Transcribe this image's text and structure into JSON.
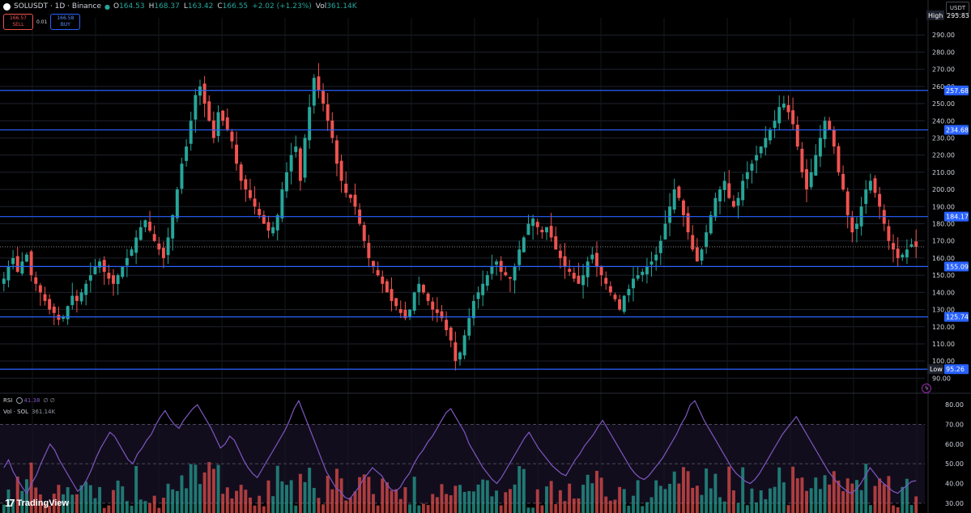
{
  "header": {
    "symbol": "SOLUSDT · 1D · Binance",
    "ohlc": {
      "o_label": "O",
      "o": "164.53",
      "h_label": "H",
      "h": "168.37",
      "l_label": "L",
      "l": "163.42",
      "c_label": "C",
      "c": "166.55",
      "change": "+2.02 (+1.23%)",
      "vol_label": "Vol",
      "vol": "361.14K"
    }
  },
  "trade": {
    "sell_price": "166.57",
    "sell_label": "SELL",
    "spread": "0.01",
    "buy_price": "166.58",
    "buy_label": "BUY"
  },
  "currency": "USDT",
  "indicators": {
    "rsi": {
      "name": "RSI",
      "values": "41.38",
      "extra": "∅ ∅"
    },
    "vol": {
      "name": "Vol · SOL",
      "value": "361.14K"
    }
  },
  "branding": {
    "name": "TradingView",
    "mark": "17"
  },
  "colors": {
    "up": "#26a69a",
    "down": "#ef5350",
    "level": "#2962ff",
    "rsi": "#7e57c2",
    "grid": "#1e222d",
    "axis_text": "#d1d4dc"
  },
  "chart_data": [
    {
      "type": "candlestick",
      "ylim": [
        85,
        300
      ],
      "y_ticks": [
        90,
        100,
        110,
        120,
        130,
        140,
        150,
        160,
        170,
        180,
        190,
        200,
        210,
        220,
        230,
        240,
        250,
        260,
        270,
        280,
        290
      ],
      "y_tick_labels": [
        "90.00",
        "100.00",
        "110.00",
        "120.00",
        "130.00",
        "140.00",
        "150.00",
        "160.00",
        "170.00",
        "180.00",
        "190.00",
        "200.00",
        "210.00",
        "220.00",
        "230.00",
        "240.00",
        "250.00",
        "260.00",
        "270.00",
        "280.00",
        "290.00"
      ],
      "horizontal_levels": [
        {
          "value": 257.68,
          "label": "257.68"
        },
        {
          "value": 234.68,
          "label": "234.68"
        },
        {
          "value": 184.17,
          "label": "184.17"
        },
        {
          "value": 155.09,
          "label": "155.09"
        },
        {
          "value": 125.74,
          "label": "125.74"
        },
        {
          "value": 95.26,
          "label": "95.26",
          "tag": "Low"
        }
      ],
      "high_marker": {
        "value": 295.83,
        "label": "295.83",
        "tag": "High"
      },
      "last_price": 166.55,
      "close_series": [
        148,
        155,
        160,
        152,
        158,
        162,
        150,
        145,
        140,
        135,
        130,
        128,
        124,
        126,
        132,
        138,
        135,
        140,
        145,
        150,
        155,
        158,
        152,
        148,
        145,
        150,
        155,
        160,
        165,
        172,
        178,
        182,
        176,
        170,
        165,
        160,
        172,
        185,
        200,
        215,
        225,
        240,
        255,
        260,
        250,
        240,
        230,
        245,
        240,
        235,
        228,
        215,
        205,
        200,
        195,
        190,
        185,
        180,
        176,
        178,
        185,
        200,
        210,
        220,
        225,
        205,
        230,
        248,
        265,
        258,
        250,
        240,
        230,
        215,
        205,
        198,
        195,
        190,
        180,
        170,
        160,
        155,
        150,
        145,
        140,
        135,
        132,
        128,
        125,
        130,
        140,
        145,
        140,
        135,
        130,
        128,
        125,
        118,
        112,
        100,
        105,
        115,
        125,
        135,
        140,
        145,
        150,
        155,
        158,
        152,
        150,
        148,
        155,
        165,
        172,
        180,
        183,
        178,
        175,
        178,
        172,
        165,
        160,
        155,
        152,
        148,
        145,
        150,
        158,
        162,
        155,
        150,
        145,
        140,
        136,
        130,
        138,
        142,
        148,
        150,
        152,
        155,
        158,
        162,
        170,
        180,
        190,
        200,
        195,
        185,
        175,
        165,
        158,
        165,
        175,
        185,
        195,
        200,
        205,
        195,
        190,
        195,
        205,
        210,
        215,
        220,
        225,
        230,
        235,
        240,
        248,
        250,
        245,
        238,
        225,
        210,
        200,
        210,
        220,
        230,
        240,
        235,
        225,
        210,
        200,
        185,
        175,
        180,
        190,
        200,
        205,
        198,
        190,
        180,
        170,
        165,
        160,
        162,
        165,
        168,
        166.55
      ]
    },
    {
      "type": "line",
      "name": "RSI",
      "ylim": [
        25,
        85
      ],
      "y_ticks": [
        30,
        40,
        50,
        60,
        70,
        80
      ],
      "y_tick_labels": [
        "30.00",
        "40.00",
        "50.00",
        "60.00",
        "70.00",
        "80.00"
      ],
      "bands": [
        30,
        50,
        70
      ],
      "values": [
        48,
        52,
        46,
        42,
        38,
        35,
        40,
        44,
        50,
        55,
        60,
        57,
        52,
        48,
        44,
        40,
        36,
        38,
        42,
        47,
        53,
        58,
        62,
        66,
        64,
        60,
        56,
        52,
        50,
        55,
        58,
        62,
        65,
        70,
        74,
        77,
        73,
        70,
        68,
        72,
        75,
        78,
        80,
        76,
        72,
        68,
        63,
        58,
        60,
        64,
        62,
        57,
        52,
        48,
        45,
        43,
        47,
        51,
        55,
        59,
        63,
        67,
        72,
        78,
        82,
        76,
        70,
        64,
        58,
        52,
        46,
        42,
        38,
        36,
        33,
        32,
        35,
        38,
        42,
        45,
        48,
        46,
        44,
        40,
        37,
        36,
        38,
        42,
        45,
        50,
        54,
        57,
        61,
        64,
        68,
        72,
        76,
        78,
        74,
        70,
        66,
        60,
        56,
        52,
        48,
        45,
        42,
        40,
        43,
        47,
        51,
        55,
        59,
        63,
        66,
        62,
        58,
        55,
        52,
        49,
        47,
        45,
        44,
        48,
        52,
        55,
        59,
        62,
        65,
        69,
        72,
        68,
        64,
        60,
        56,
        52,
        48,
        45,
        43,
        42,
        44,
        47,
        50,
        53,
        57,
        61,
        65,
        70,
        74,
        80,
        82,
        77,
        72,
        68,
        64,
        60,
        56,
        52,
        48,
        45,
        43,
        41,
        40,
        42,
        45,
        49,
        53,
        57,
        61,
        65,
        68,
        71,
        74,
        70,
        66,
        62,
        58,
        54,
        50,
        46,
        43,
        40,
        38,
        36,
        35,
        37,
        40,
        44,
        48,
        45,
        42,
        40,
        38,
        36,
        35,
        37,
        39,
        41,
        41.38
      ]
    },
    {
      "type": "bar",
      "name": "Vol · SOL",
      "last_value_label": "361.14K"
    }
  ]
}
